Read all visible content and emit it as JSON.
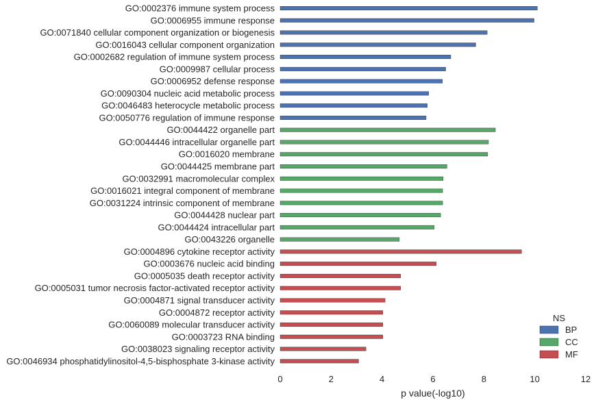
{
  "chart_data": {
    "type": "bar",
    "orientation": "horizontal",
    "xlabel": "p value(-log10)",
    "xlim": [
      0,
      12
    ],
    "xticks": [
      "0",
      "2",
      "4",
      "6",
      "8",
      "10",
      "12"
    ],
    "grid": false,
    "legend": {
      "title": "NS",
      "placement": "bottom-right",
      "entries": [
        {
          "name": "BP",
          "color": "#4c72b0"
        },
        {
          "name": "CC",
          "color": "#55a868"
        },
        {
          "name": "MF",
          "color": "#c44e52"
        }
      ]
    },
    "categories": [
      "GO:0002376 immune system process",
      "GO:0006955 immune response",
      "GO:0071840 cellular component organization or biogenesis",
      "GO:0016043 cellular component organization",
      "GO:0002682 regulation of immune system process",
      "GO:0009987 cellular process",
      "GO:0006952 defense response",
      "GO:0090304 nucleic acid metabolic process",
      "GO:0046483 heterocycle metabolic process",
      "GO:0050776 regulation of immune response",
      "GO:0044422 organelle part",
      "GO:0044446 intracellular organelle part",
      "GO:0016020 membrane",
      "GO:0044425 membrane part",
      "GO:0032991 macromolecular complex",
      "GO:0016021 integral component of membrane",
      "GO:0031224 intrinsic component of membrane",
      "GO:0044428 nuclear part",
      "GO:0044424 intracellular part",
      "GO:0043226 organelle",
      "GO:0004896 cytokine receptor activity",
      "GO:0003676 nucleic acid binding",
      "GO:0005035 death receptor activity",
      "GO:0005031 tumor necrosis factor-activated receptor activity",
      "GO:0004871 signal transducer activity",
      "GO:0004872 receptor activity",
      "GO:0060089 molecular transducer activity",
      "GO:0003723 RNA binding",
      "GO:0038023 signaling receptor activity",
      "GO:0046934 phosphatidylinositol-4,5-bisphosphate 3-kinase activity"
    ],
    "values": [
      10.1,
      9.97,
      8.13,
      7.68,
      6.7,
      6.5,
      6.37,
      5.83,
      5.78,
      5.73,
      8.45,
      8.18,
      8.15,
      6.55,
      6.4,
      6.38,
      6.38,
      6.3,
      6.05,
      4.68,
      9.48,
      6.13,
      4.73,
      4.73,
      4.12,
      4.03,
      4.03,
      4.03,
      3.37,
      3.08
    ],
    "ns": [
      "BP",
      "BP",
      "BP",
      "BP",
      "BP",
      "BP",
      "BP",
      "BP",
      "BP",
      "BP",
      "CC",
      "CC",
      "CC",
      "CC",
      "CC",
      "CC",
      "CC",
      "CC",
      "CC",
      "CC",
      "MF",
      "MF",
      "MF",
      "MF",
      "MF",
      "MF",
      "MF",
      "MF",
      "MF",
      "MF"
    ]
  }
}
